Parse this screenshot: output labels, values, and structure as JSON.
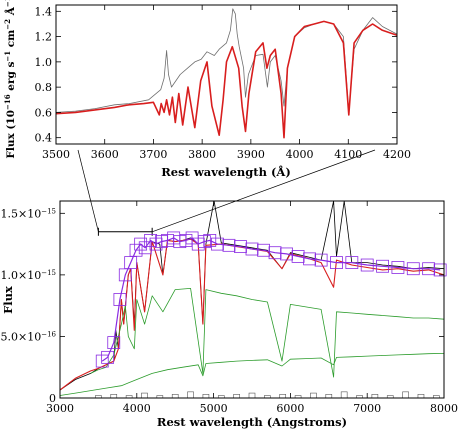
{
  "chart_data": [
    {
      "id": "inset",
      "type": "line",
      "xlabel": "Rest wavelength (Å)",
      "ylabel_parts": [
        "Flux (10",
        "−16",
        " erg s",
        "−1",
        " cm",
        "−2",
        " Å",
        "−1",
        ")"
      ],
      "xlim": [
        3500,
        4200
      ],
      "ylim": [
        0.35,
        1.45
      ],
      "xticks": [
        3500,
        3600,
        3700,
        3800,
        3900,
        4000,
        4100,
        4200
      ],
      "xtick_labels": [
        "3500",
        "3600",
        "3700",
        "3800",
        "3900",
        "4000",
        "4100",
        "4200"
      ],
      "yticks": [
        0.4,
        0.6,
        0.8,
        1.0,
        1.2,
        1.4
      ],
      "ytick_labels": [
        "0.4",
        "0.6",
        "0.8",
        "1.0",
        "1.2",
        "1.4"
      ],
      "series": [
        {
          "role": "observed",
          "color": "#6e6e6e",
          "x": [
            3500,
            3540,
            3580,
            3620,
            3650,
            3690,
            3715,
            3722,
            3727,
            3731,
            3737,
            3755,
            3770,
            3785,
            3798,
            3810,
            3825,
            3835,
            3850,
            3858,
            3863,
            3868,
            3872,
            3876,
            3885,
            3889,
            3895,
            3910,
            3925,
            3934,
            3940,
            3950,
            3962,
            3968,
            3975,
            3990,
            4010,
            4030,
            4050,
            4070,
            4090,
            4101,
            4112,
            4130,
            4150,
            4170,
            4200
          ],
          "y": [
            0.6,
            0.61,
            0.63,
            0.66,
            0.67,
            0.7,
            0.78,
            0.87,
            1.09,
            0.9,
            0.8,
            0.9,
            0.95,
            1.0,
            1.02,
            1.08,
            1.05,
            1.1,
            1.15,
            1.25,
            1.42,
            1.38,
            1.22,
            1.12,
            0.95,
            0.72,
            0.9,
            1.05,
            1.06,
            0.8,
            1.0,
            1.05,
            0.85,
            0.65,
            0.95,
            1.2,
            1.27,
            1.3,
            1.32,
            1.3,
            1.2,
            0.6,
            1.1,
            1.25,
            1.35,
            1.28,
            1.22
          ]
        },
        {
          "role": "model",
          "color": "#d81e1e",
          "x": [
            3500,
            3540,
            3580,
            3620,
            3650,
            3680,
            3700,
            3712,
            3716,
            3722,
            3727,
            3733,
            3739,
            3745,
            3752,
            3760,
            3771,
            3785,
            3797,
            3810,
            3820,
            3835,
            3843,
            3850,
            3862,
            3875,
            3882,
            3889,
            3896,
            3910,
            3925,
            3933,
            3940,
            3950,
            3962,
            3968,
            3975,
            3990,
            4010,
            4030,
            4050,
            4070,
            4090,
            4101,
            4112,
            4130,
            4150,
            4170,
            4200
          ],
          "y": [
            0.59,
            0.6,
            0.62,
            0.64,
            0.66,
            0.67,
            0.68,
            0.58,
            0.67,
            0.6,
            0.7,
            0.58,
            0.72,
            0.52,
            0.75,
            0.5,
            0.8,
            0.48,
            0.85,
            1.0,
            0.65,
            0.42,
            0.7,
            1.0,
            1.12,
            0.95,
            0.65,
            0.45,
            0.75,
            1.08,
            1.15,
            0.95,
            1.05,
            1.1,
            0.75,
            0.4,
            0.95,
            1.2,
            1.28,
            1.3,
            1.32,
            1.3,
            1.15,
            0.58,
            1.15,
            1.25,
            1.3,
            1.25,
            1.21
          ]
        }
      ]
    },
    {
      "id": "main",
      "type": "line",
      "xlabel": "Rest wavelength (Angstroms)",
      "ylabel": "Flux",
      "xlim": [
        3000,
        8000
      ],
      "ylim": [
        0,
        1.6e-15
      ],
      "xticks": [
        3000,
        4000,
        5000,
        6000,
        7000,
        8000
      ],
      "xtick_labels": [
        "3000",
        "4000",
        "5000",
        "6000",
        "7000",
        "8000"
      ],
      "yticks": [
        0,
        5e-16,
        1e-15,
        1.5e-15
      ],
      "ytick_labels": [
        {
          "m": "0",
          "e": ""
        },
        {
          "m": "5.0×10",
          "e": "−16"
        },
        {
          "m": "1.0×10",
          "e": "−15"
        },
        {
          "m": "1.5×10",
          "e": "−15"
        }
      ],
      "series": [
        {
          "role": "observed",
          "color": "#000000",
          "x": [
            3000,
            3200,
            3400,
            3500,
            3600,
            3700,
            3727,
            3760,
            3800,
            3830,
            3889,
            3920,
            3968,
            4000,
            4101,
            4200,
            4300,
            4340,
            4400,
            4500,
            4600,
            4700,
            4800,
            4861,
            4900,
            4959,
            5007,
            5100,
            5300,
            5500,
            5700,
            5890,
            6000,
            6200,
            6400,
            6563,
            6600,
            6700,
            6800,
            7000,
            7200,
            7400,
            7600,
            7800,
            8000
          ],
          "y": [
            6.5e-17,
            1.5e-16,
            2e-16,
            2.4e-16,
            2.7e-16,
            3e-16,
            5.5e-16,
            4e-16,
            8e-16,
            6e-16,
            1e-15,
            1.05e-15,
            6e-16,
            1.1e-15,
            7e-16,
            1.27e-15,
            1.25e-15,
            1e-15,
            1.28e-15,
            1.27e-15,
            1.28e-15,
            1.3e-15,
            1.25e-15,
            6e-16,
            1.25e-15,
            1.45e-15,
            1.6e-15,
            1.26e-15,
            1.24e-15,
            1.22e-15,
            1.2e-15,
            1.05e-15,
            1.18e-15,
            1.15e-15,
            1.12e-15,
            1.6e-15,
            1.15e-15,
            1.6e-15,
            1.1e-15,
            1.1e-15,
            1.08e-15,
            1.07e-15,
            1.05e-15,
            1.06e-15,
            1.05e-15
          ]
        },
        {
          "role": "model",
          "color": "#d81e1e",
          "x": [
            3000,
            3200,
            3400,
            3500,
            3600,
            3700,
            3760,
            3800,
            3830,
            3889,
            3920,
            3968,
            4000,
            4101,
            4200,
            4340,
            4400,
            4500,
            4600,
            4700,
            4800,
            4861,
            4900,
            5100,
            5300,
            5500,
            5700,
            5890,
            6000,
            6200,
            6400,
            6563,
            6600,
            6800,
            7000,
            7200,
            7400,
            7600,
            7800,
            8000
          ],
          "y": [
            6.5e-17,
            1.6e-16,
            2.2e-16,
            2.4e-16,
            2.7e-16,
            3e-16,
            4e-16,
            8e-16,
            6e-16,
            1e-15,
            1.05e-15,
            5.5e-16,
            1.1e-15,
            7e-16,
            1.27e-15,
            1e-15,
            1.28e-15,
            1.27e-15,
            1.28e-15,
            1.29e-15,
            1.25e-15,
            6e-16,
            1.24e-15,
            1.25e-15,
            1.23e-15,
            1.21e-15,
            1.19e-15,
            1.05e-15,
            1.17e-15,
            1.14e-15,
            1.1e-15,
            9e-16,
            1.12e-15,
            1.08e-15,
            1.06e-15,
            1.04e-15,
            1.05e-15,
            1.03e-15,
            1.04e-15,
            1e-15
          ]
        },
        {
          "role": "component-old",
          "color": "#2c9c2c",
          "x": [
            3400,
            3500,
            3600,
            3700,
            3800,
            3850,
            3889,
            3968,
            4000,
            4101,
            4200,
            4340,
            4500,
            4700,
            4861,
            4900,
            5100,
            5300,
            5500,
            5700,
            5890,
            6000,
            6200,
            6400,
            6563,
            6600,
            6800,
            7000,
            7200,
            7400,
            7600,
            7800,
            8000
          ],
          "y": [
            2e-16,
            2.3e-16,
            2.5e-16,
            3.5e-16,
            6e-16,
            7.5e-16,
            5e-16,
            4e-16,
            8e-16,
            6e-16,
            8.3e-16,
            7e-16,
            8.8e-16,
            8.9e-16,
            2e-16,
            8.8e-16,
            8.5e-16,
            8.3e-16,
            8e-16,
            7.8e-16,
            3e-16,
            7.6e-16,
            7.4e-16,
            7.2e-16,
            1.7e-16,
            7e-16,
            6.9e-16,
            6.8e-16,
            6.7e-16,
            6.6e-16,
            6.5e-16,
            6.5e-16,
            6.4e-16
          ]
        },
        {
          "role": "component-young",
          "color": "#2c9c2c",
          "x": [
            3000,
            3200,
            3400,
            3600,
            3800,
            4000,
            4200,
            4400,
            4600,
            4800,
            4861,
            4900,
            5100,
            5300,
            5500,
            5700,
            5890,
            6000,
            6200,
            6400,
            6563,
            6600,
            6800,
            7000,
            7200,
            7400,
            7600,
            7800,
            8000
          ],
          "y": [
            2e-17,
            4e-17,
            6e-17,
            8e-17,
            1e-16,
            1.5e-16,
            2e-16,
            2.3e-16,
            2.5e-16,
            2.7e-16,
            1.8e-16,
            2.8e-16,
            2.9e-16,
            3e-16,
            3.05e-16,
            3.1e-16,
            2.6e-16,
            3.15e-16,
            3.2e-16,
            3.25e-16,
            2.7e-16,
            3.3e-16,
            3.35e-16,
            3.4e-16,
            3.45e-16,
            3.5e-16,
            3.55e-16,
            3.6e-16,
            3.62e-16
          ]
        },
        {
          "role": "residual-histogram",
          "color": "#555555",
          "x": [
            3500,
            3700,
            3900,
            4100,
            4300,
            4500,
            4700,
            4900,
            5100,
            5300,
            5500,
            5700,
            5900,
            6100,
            6300,
            6500,
            6700,
            6900,
            7100,
            7300,
            7500,
            7700,
            7900
          ],
          "y": [
            2e-17,
            3e-17,
            2e-17,
            4e-17,
            2e-17,
            3e-17,
            5e-17,
            3e-17,
            2e-17,
            3e-17,
            4e-17,
            2e-17,
            3e-17,
            2e-17,
            4e-17,
            3e-17,
            5e-17,
            2e-17,
            3e-17,
            2e-17,
            5e-17,
            3e-17,
            2e-17
          ]
        }
      ],
      "photometry": {
        "color": "#8a2be2",
        "x": [
          3550,
          3620,
          3700,
          3780,
          3850,
          3920,
          3990,
          4050,
          4110,
          4180,
          4250,
          4320,
          4400,
          4480,
          4560,
          4640,
          4720,
          4800,
          4880,
          4950,
          5050,
          5200,
          5350,
          5500,
          5650,
          5800,
          5950,
          6100,
          6250,
          6400,
          6600,
          6800,
          7000,
          7200,
          7400,
          7600,
          7800,
          7950
        ],
        "y": [
          3e-16,
          3.3e-16,
          4.5e-16,
          8e-16,
          1e-15,
          1.1e-15,
          1.2e-15,
          1.25e-15,
          1.22e-15,
          1.28e-15,
          1.25e-15,
          1.27e-15,
          1.28e-15,
          1.3e-15,
          1.27e-15,
          1.28e-15,
          1.3e-15,
          1.25e-15,
          1.27e-15,
          1.28e-15,
          1.25e-15,
          1.24e-15,
          1.23e-15,
          1.21e-15,
          1.2e-15,
          1.18e-15,
          1.17e-15,
          1.15e-15,
          1.13e-15,
          1.12e-15,
          1.1e-15,
          1.1e-15,
          1.08e-15,
          1.07e-15,
          1.06e-15,
          1.05e-15,
          1.05e-15,
          1.04e-15
        ]
      },
      "zoom_bracket": {
        "x": [
          3500,
          4200
        ],
        "y": 1.35e-15
      }
    }
  ]
}
